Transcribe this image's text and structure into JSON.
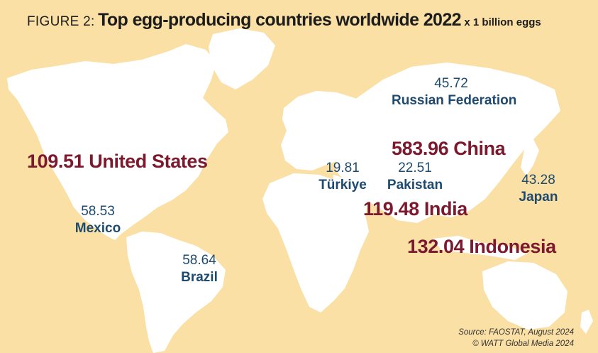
{
  "header": {
    "figure_label": "FIGURE 2:",
    "title": "Top egg-producing countries worldwide 2022",
    "unit": "x 1 billion eggs"
  },
  "map_labels": [
    {
      "id": "united-states",
      "value": "109.51",
      "country": "United States",
      "emphasis": "major"
    },
    {
      "id": "china",
      "value": "583.96",
      "country": "China",
      "emphasis": "major"
    },
    {
      "id": "india",
      "value": "119.48",
      "country": "India",
      "emphasis": "major"
    },
    {
      "id": "indonesia",
      "value": "132.04",
      "country": "Indonesia",
      "emphasis": "major"
    },
    {
      "id": "russian-federation",
      "value": "45.72",
      "country": "Russian Federation",
      "emphasis": "minor"
    },
    {
      "id": "turkiye",
      "value": "19.81",
      "country": "Türkiye",
      "emphasis": "minor"
    },
    {
      "id": "pakistan",
      "value": "22.51",
      "country": "Pakistan",
      "emphasis": "minor"
    },
    {
      "id": "japan",
      "value": "43.28",
      "country": "Japan",
      "emphasis": "minor"
    },
    {
      "id": "mexico",
      "value": "58.53",
      "country": "Mexico",
      "emphasis": "minor"
    },
    {
      "id": "brazil",
      "value": "58.64",
      "country": "Brazil",
      "emphasis": "minor"
    }
  ],
  "footer": {
    "source": "Source: FAOSTAT, August 2024",
    "copyright": "© WATT Global Media 2024"
  },
  "colors": {
    "background": "#fbe0a6",
    "land": "#ffffff",
    "major_label": "#7b1a2e",
    "minor_label": "#1d4a6e"
  }
}
